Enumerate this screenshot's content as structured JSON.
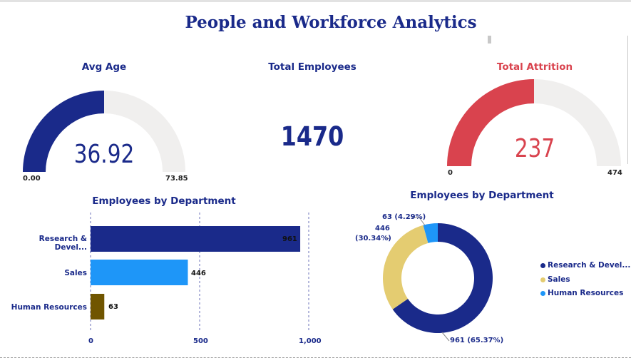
{
  "report": {
    "title": "People and Workforce Analytics"
  },
  "colors": {
    "navy": "#1a2a8a",
    "red": "#d9434e",
    "grey_track": "#f0efee",
    "blue": "#1e96f8",
    "gold": "#e4cc71",
    "olive": "#705500"
  },
  "avg_age": {
    "title": "Avg Age",
    "value": "36.92",
    "min": "0.00",
    "max": "73.85",
    "fill_fraction": 0.5
  },
  "total_employees": {
    "title": "Total Employees",
    "value": "1470"
  },
  "total_attrition": {
    "title": "Total Attrition",
    "value": "237",
    "min": "0",
    "max": "474",
    "fill_fraction": 0.5
  },
  "chart_data": [
    {
      "type": "bar",
      "title": "Employees by Department",
      "categories": [
        "Research & Devel...",
        "Sales",
        "Human Resources"
      ],
      "values": [
        961,
        446,
        63
      ],
      "value_labels": [
        "961",
        "446",
        "63"
      ],
      "xlim": [
        0,
        1000
      ],
      "x_ticks": [
        0,
        500,
        1000
      ],
      "x_tick_labels": [
        "0",
        "500",
        "1,000"
      ],
      "bar_colors": [
        "#1a2a8a",
        "#1e96f8",
        "#705500"
      ]
    },
    {
      "type": "pie",
      "title": "Employees by Department",
      "categories": [
        "Research & Devel...",
        "Sales",
        "Human Resources"
      ],
      "values": [
        961,
        446,
        63
      ],
      "percent_labels": [
        "961 (65.37%)",
        "446 (30.34%)",
        "63 (4.29%)"
      ],
      "label_446_line1": "446",
      "label_446_line2": "(30.34%)",
      "colors": [
        "#1a2a8a",
        "#e4cc71",
        "#1e96f8"
      ],
      "legend": [
        "Research & Devel...",
        "Sales",
        "Human Resources"
      ],
      "legend_position": "right"
    }
  ]
}
